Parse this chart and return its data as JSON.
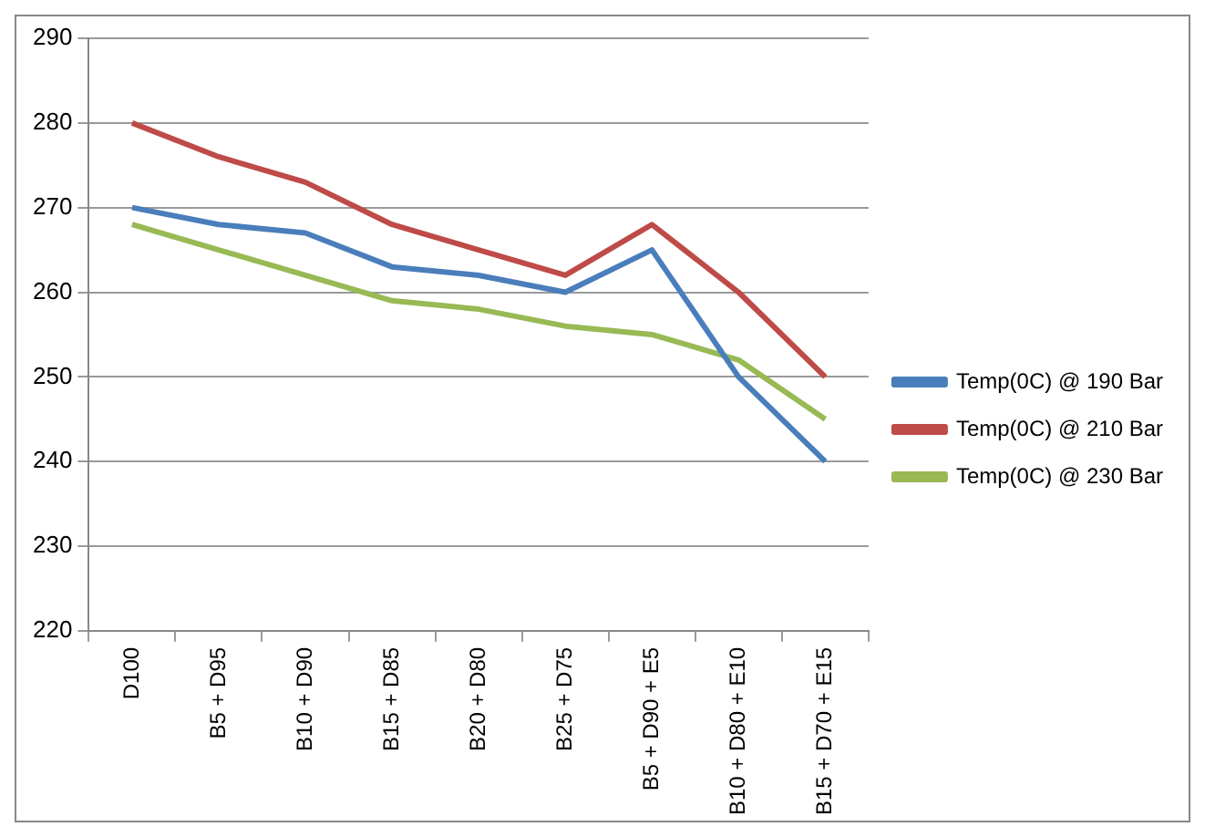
{
  "chart_data": {
    "type": "line",
    "categories": [
      "D100",
      "B5 + D95",
      "B10 + D90",
      "B15 + D85",
      "B20 + D80",
      "B25 + D75",
      "B5 + D90 + E5",
      "B10 + D80 + E10",
      "B15 + D70 + E15"
    ],
    "series": [
      {
        "name": "Temp(0C) @ 190 Bar",
        "color": "#4a7ebb",
        "values": [
          270,
          268,
          267,
          263,
          262,
          260,
          265,
          250,
          240
        ]
      },
      {
        "name": "Temp(0C) @ 210 Bar",
        "color": "#be4b48",
        "values": [
          280,
          276,
          273,
          268,
          265,
          262,
          268,
          260,
          250
        ]
      },
      {
        "name": "Temp(0C) @ 230 Bar",
        "color": "#98b954",
        "values": [
          268,
          265,
          262,
          259,
          258,
          256,
          255,
          252,
          245
        ]
      }
    ],
    "ylim": [
      220,
      290
    ],
    "yticks": [
      220,
      230,
      240,
      250,
      260,
      270,
      280,
      290
    ],
    "grid": "y",
    "legend": "right",
    "marker": "none",
    "line_style": "solid"
  }
}
